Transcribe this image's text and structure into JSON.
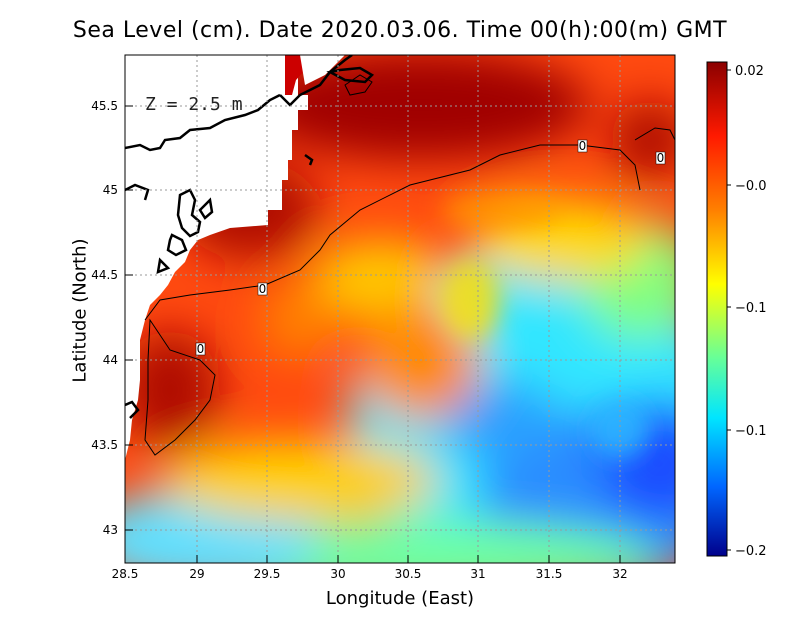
{
  "title": "Sea Level (cm). Date 2020.03.06. Time 00(h):00(m) GMT",
  "depth_label": "Z = 2.5 m",
  "xlabel": "Longitude (East)",
  "ylabel": "Latitude (North)",
  "x_ticks": [
    "28.5",
    "29",
    "29.5",
    "30",
    "30.5",
    "31",
    "31.5",
    "32"
  ],
  "y_ticks": [
    "45.5",
    "45",
    "44.5",
    "44",
    "43.5",
    "43"
  ],
  "colorbar": {
    "labels": [
      "0.02",
      "−0.0",
      "−0.1",
      "−0.1",
      "−0.2"
    ],
    "colors": [
      "#8b0000",
      "#ff2000",
      "#ff8000",
      "#ffff00",
      "#60ff90",
      "#00e0ff",
      "#0060ff",
      "#00008b"
    ]
  },
  "contour_labels": [
    "0",
    "0",
    "0",
    "0"
  ],
  "chart_data": {
    "type": "heatmap",
    "title": "Sea Level (cm). Date 2020.03.06. Time 00(h):00(m) GMT",
    "xlabel": "Longitude (East)",
    "ylabel": "Latitude (North)",
    "xlim": [
      28.5,
      32.4
    ],
    "ylim": [
      42.8,
      45.8
    ],
    "color_range": [
      -0.2,
      0.02
    ],
    "contour_level": 0
  }
}
